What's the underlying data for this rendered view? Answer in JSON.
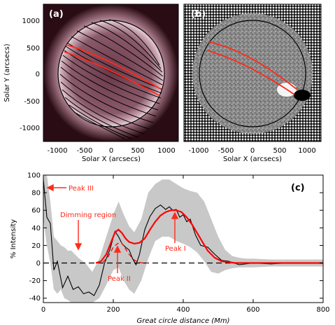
{
  "top_panels": {
    "panel_a": {
      "label": "(a)",
      "ylabel": "Solar Y (arcsecs)",
      "xlabel": "Solar X (arcsecs)",
      "x_ticks": [
        "-1000",
        "-500",
        "0",
        "500",
        "1000"
      ],
      "y_ticks": [
        "1000",
        "500",
        "0",
        "-500",
        "-1000"
      ]
    },
    "panel_b": {
      "label": "(b)",
      "xlabel": "Solar X (arcsecs)",
      "x_ticks": [
        "-1000",
        "-500",
        "0",
        "500",
        "1000"
      ]
    },
    "colors": {
      "sector": "#ff2a1a",
      "grid": "#000000",
      "disk_a": "#7a4a5a",
      "disk_b": "#888888"
    }
  },
  "chart_data": {
    "type": "line",
    "panel_label": "(c)",
    "xlabel": "Great circle distance (Mm)",
    "ylabel": "% Intensity",
    "xlim": [
      0,
      800
    ],
    "ylim": [
      -45,
      100
    ],
    "x_ticks": [
      0,
      200,
      400,
      600,
      800
    ],
    "y_ticks": [
      -40,
      -20,
      0,
      20,
      40,
      60,
      80,
      100
    ],
    "series": [
      {
        "style": "black-solid",
        "color": "#000000",
        "x": [
          0,
          10,
          20,
          30,
          40,
          55,
          70,
          85,
          100,
          115,
          130,
          145,
          160,
          175,
          190,
          205,
          215,
          225,
          235,
          245,
          255,
          265,
          275,
          290,
          305,
          320,
          335,
          350,
          360,
          370,
          380,
          390,
          400,
          410,
          420,
          435,
          450,
          470,
          490,
          510,
          530,
          560,
          600,
          650,
          700,
          760,
          800
        ],
        "y": [
          95,
          52,
          45,
          -8,
          2,
          -28,
          -15,
          -30,
          -27,
          -35,
          -33,
          -37,
          -25,
          0,
          15,
          36,
          30,
          22,
          18,
          15,
          5,
          -2,
          10,
          38,
          53,
          62,
          66,
          61,
          64,
          60,
          61,
          52,
          55,
          47,
          50,
          32,
          20,
          18,
          10,
          3,
          2,
          -2,
          0,
          -1,
          0,
          0,
          0
        ]
      },
      {
        "style": "black-dashed",
        "color": "#000000",
        "x": [
          0,
          800
        ],
        "y": [
          0,
          0
        ]
      },
      {
        "style": "red-dashed",
        "color": "#ff0000",
        "x": [
          150,
          170,
          185,
          200,
          212,
          222,
          232,
          245,
          258,
          270,
          285,
          300
        ],
        "y": [
          0,
          1,
          7,
          18,
          22,
          24,
          18,
          10,
          4,
          1,
          0,
          0
        ]
      },
      {
        "style": "red-solid",
        "color": "#ff0000",
        "x": [
          150,
          165,
          180,
          195,
          205,
          215,
          225,
          235,
          245,
          260,
          275,
          290,
          305,
          320,
          335,
          350,
          365,
          380,
          395,
          410,
          425,
          440,
          455,
          470,
          490,
          510,
          530,
          550,
          570,
          600,
          650,
          700,
          800
        ],
        "y": [
          0,
          2,
          10,
          25,
          35,
          38,
          34,
          28,
          24,
          22,
          23,
          28,
          38,
          47,
          54,
          58,
          60,
          60,
          58,
          52,
          44,
          34,
          24,
          14,
          6,
          2,
          1,
          0,
          0,
          0,
          0,
          0,
          0
        ]
      },
      {
        "style": "gray-band-upper",
        "color": "#c8c8c8",
        "x": [
          0,
          10,
          20,
          30,
          40,
          50,
          60,
          70,
          80,
          100,
          120,
          140,
          160,
          180,
          200,
          215,
          230,
          245,
          260,
          280,
          300,
          320,
          340,
          360,
          380,
          400,
          420,
          440,
          460,
          480,
          500,
          520,
          540,
          560,
          580,
          600,
          650,
          700,
          750,
          800
        ],
        "y": [
          100,
          100,
          70,
          30,
          25,
          20,
          18,
          14,
          14,
          6,
          0,
          -10,
          5,
          30,
          55,
          70,
          55,
          42,
          35,
          50,
          80,
          90,
          95,
          95,
          90,
          85,
          82,
          80,
          70,
          50,
          30,
          15,
          8,
          6,
          5,
          5,
          4,
          4,
          4,
          4
        ]
      },
      {
        "style": "gray-band-lower",
        "color": "#c8c8c8",
        "x": [
          0,
          10,
          20,
          30,
          40,
          50,
          60,
          70,
          80,
          100,
          120,
          140,
          160,
          180,
          200,
          215,
          230,
          245,
          260,
          280,
          300,
          320,
          340,
          360,
          380,
          400,
          420,
          440,
          460,
          480,
          500,
          520,
          540,
          560,
          580,
          600,
          650,
          700,
          750,
          800
        ],
        "y": [
          50,
          20,
          0,
          -30,
          -35,
          -30,
          -40,
          -42,
          -45,
          -45,
          -45,
          -45,
          -40,
          -25,
          -8,
          -5,
          -20,
          -30,
          -35,
          -20,
          5,
          25,
          30,
          30,
          25,
          22,
          18,
          12,
          2,
          -10,
          -12,
          -8,
          -6,
          -5,
          -5,
          -5,
          -4,
          -4,
          -4,
          -4
        ]
      }
    ],
    "annotations": [
      {
        "text": "Peak III",
        "x": 70,
        "y": 82
      },
      {
        "text": "Dimming region",
        "x": 95,
        "y": 48
      },
      {
        "text": "Peak II",
        "x": 210,
        "y": -17
      },
      {
        "text": "Peak I",
        "x": 355,
        "y": 11
      }
    ]
  }
}
